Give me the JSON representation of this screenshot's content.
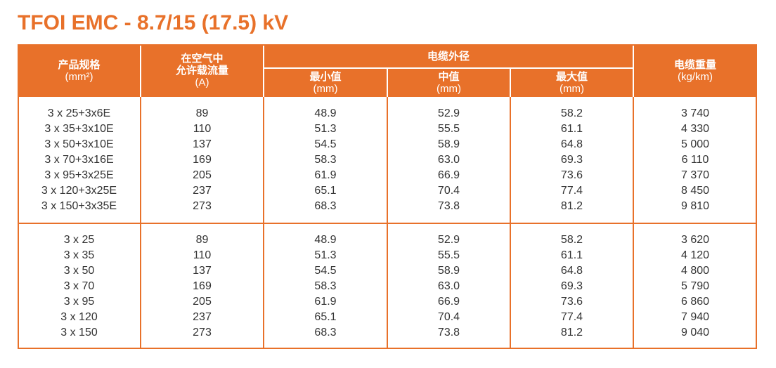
{
  "header": {
    "title": "TFOI EMC - 8.7/15 (17.5) kV"
  },
  "table": {
    "columns": [
      {
        "lines": [
          "产品规格",
          "(mm²)"
        ]
      },
      {
        "lines": [
          "在空气中",
          "允许载流量",
          "(A)"
        ]
      },
      {
        "lines": [
          "最小值",
          "(mm)"
        ]
      },
      {
        "lines": [
          "中值",
          "(mm)"
        ]
      },
      {
        "lines": [
          "最大值",
          "(mm)"
        ]
      },
      {
        "lines": [
          "电缆重量",
          "(kg/km)"
        ]
      }
    ],
    "group_header": "电缆外径",
    "groups": [
      {
        "rows": [
          [
            "3 x 25+3x6E",
            "89",
            "48.9",
            "52.9",
            "58.2",
            "3 740"
          ],
          [
            "3 x 35+3x10E",
            "110",
            "51.3",
            "55.5",
            "61.1",
            "4 330"
          ],
          [
            "3 x 50+3x10E",
            "137",
            "54.5",
            "58.9",
            "64.8",
            "5 000"
          ],
          [
            "3 x 70+3x16E",
            "169",
            "58.3",
            "63.0",
            "69.3",
            "6 110"
          ],
          [
            "3 x 95+3x25E",
            "205",
            "61.9",
            "66.9",
            "73.6",
            "7 370"
          ],
          [
            "3 x 120+3x25E",
            "237",
            "65.1",
            "70.4",
            "77.4",
            "8 450"
          ],
          [
            "3 x 150+3x35E",
            "273",
            "68.3",
            "73.8",
            "81.2",
            "9 810"
          ]
        ]
      },
      {
        "rows": [
          [
            "3 x 25",
            "89",
            "48.9",
            "52.9",
            "58.2",
            "3 620"
          ],
          [
            "3 x 35",
            "110",
            "51.3",
            "55.5",
            "61.1",
            "4 120"
          ],
          [
            "3 x 50",
            "137",
            "54.5",
            "58.9",
            "64.8",
            "4 800"
          ],
          [
            "3 x 70",
            "169",
            "58.3",
            "63.0",
            "69.3",
            "5 790"
          ],
          [
            "3 x 95",
            "205",
            "61.9",
            "66.9",
            "73.6",
            "6 860"
          ],
          [
            "3 x 120",
            "237",
            "65.1",
            "70.4",
            "77.4",
            "7 940"
          ],
          [
            "3 x 150",
            "273",
            "68.3",
            "73.8",
            "81.2",
            "9 040"
          ]
        ]
      }
    ]
  }
}
